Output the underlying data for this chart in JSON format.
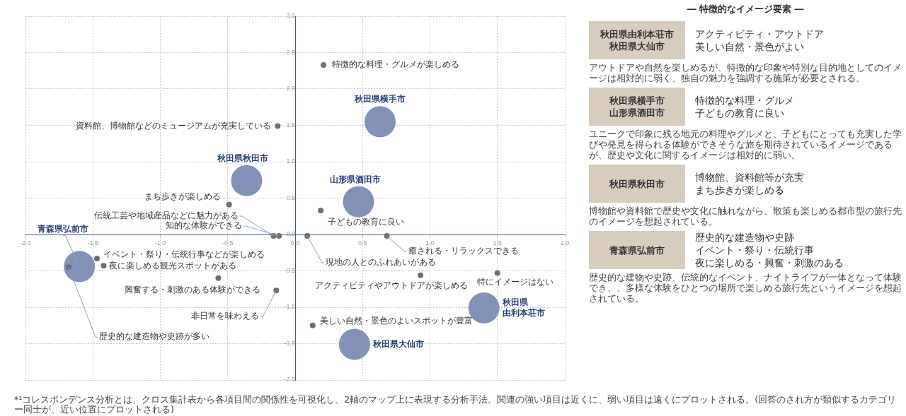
{
  "chart_data": [
    {
      "type": "scatter",
      "xlim": [
        -2,
        2
      ],
      "xticks": [
        {
          "value": -2,
          "label": "-2.0"
        },
        {
          "value": -1.5,
          "label": "-1.5"
        },
        {
          "value": -1,
          "label": "-1.0"
        },
        {
          "value": -0.5,
          "label": "-0.5"
        },
        {
          "value": 0,
          "label": "0.0"
        },
        {
          "value": 0.5,
          "label": "0.5"
        },
        {
          "value": 1,
          "label": "1.0"
        },
        {
          "value": 1.5,
          "label": "1.5"
        },
        {
          "value": 2,
          "label": "2.0"
        }
      ],
      "ylim": [
        -2,
        3
      ],
      "yticks": [
        {
          "value": -2,
          "label": "-2.0"
        },
        {
          "value": -1.5,
          "label": "-1.5"
        },
        {
          "value": -1,
          "label": "-1.0"
        },
        {
          "value": -0.5,
          "label": "-0.5"
        },
        {
          "value": 0,
          "label": "0.0"
        },
        {
          "value": 0.5,
          "label": "0.5"
        },
        {
          "value": 1,
          "label": "1.0"
        },
        {
          "value": 1.5,
          "label": "1.5"
        },
        {
          "value": 2,
          "label": "2.0"
        },
        {
          "value": 2.5,
          "label": "2.5"
        },
        {
          "value": 3,
          "label": "3.0"
        }
      ],
      "grid": true,
      "series": [
        {
          "type": "scatter",
          "color": "#6e6e6e",
          "x": [
            0.21,
            -0.13,
            -0.49,
            0.19,
            -0.16,
            -0.12,
            0.09,
            0.68,
            -1.68,
            -1.47,
            -1.42,
            -0.57,
            -0.14,
            0.93,
            1.5,
            0.13
          ],
          "values": [
            2.33,
            1.49,
            0.41,
            0.33,
            -0.02,
            -0.02,
            -0.02,
            -0.02,
            -0.45,
            -0.33,
            -0.43,
            -0.6,
            -0.77,
            -0.56,
            -0.53,
            -1.25
          ]
        },
        {
          "type": "bubble",
          "color": "#8391b8",
          "x": [
            0.63,
            -0.36,
            0.47,
            -1.6,
            1.4,
            0.44
          ],
          "values": [
            1.55,
            0.74,
            0.45,
            -0.44,
            -1.01,
            -1.51
          ],
          "sizes": [
            1,
            1,
            1,
            1,
            1,
            1
          ]
        }
      ],
      "annotations": [
        {
          "text": "特徴的な料理・グルメが楽しめる",
          "x": 0.21,
          "y": 2.33
        },
        {
          "text": "資料館、博物館などのミュージアムが充実している",
          "x": -0.13,
          "y": 1.49
        },
        {
          "text": "まち歩きが楽しめる",
          "x": -0.49,
          "y": 0.41
        },
        {
          "text": "子どもの教育に良い",
          "x": 0.19,
          "y": 0.33
        },
        {
          "text": "伝統工芸や地域産品などに魅力がある",
          "x": -0.16,
          "y": -0.02
        },
        {
          "text": "知的な体験ができる",
          "x": -0.12,
          "y": -0.02
        },
        {
          "text": "現地の人とのふれあいがある",
          "x": 0.09,
          "y": -0.02
        },
        {
          "text": "癒される・リラックスできる",
          "x": 0.68,
          "y": -0.02
        },
        {
          "text": "歴史的な建造物や史跡が多い",
          "x": -1.68,
          "y": -0.45
        },
        {
          "text": "イベント・祭り・伝統行事などが楽しめる",
          "x": -1.47,
          "y": -0.33
        },
        {
          "text": "夜に楽しめる観光スポットがある",
          "x": -1.42,
          "y": -0.43
        },
        {
          "text": "興奮する・刺激のある体験ができる",
          "x": -0.57,
          "y": -0.6
        },
        {
          "text": "非日常を味わえる",
          "x": -0.14,
          "y": -0.77
        },
        {
          "text": "アクティビティやアウトドアが楽しめる",
          "x": 0.93,
          "y": -0.56
        },
        {
          "text": "特にイメージはない",
          "x": 1.5,
          "y": -0.53
        },
        {
          "text": "美しい自然・景色のよいスポットが豊富",
          "x": 0.13,
          "y": -1.25
        },
        {
          "text": "秋田県横手市",
          "x": 0.63,
          "y": 1.55
        },
        {
          "text": "秋田県秋田市",
          "x": -0.36,
          "y": 0.74
        },
        {
          "text": "山形県酒田市",
          "x": 0.47,
          "y": 0.45
        },
        {
          "text": "青森県弘前市",
          "x": -1.6,
          "y": -0.44
        },
        {
          "text": "秋田県由利本荘市",
          "x": 1.4,
          "y": -1.01
        },
        {
          "text": "秋田県大仙市",
          "x": 0.44,
          "y": -1.51
        },
        "*¹コレスポンデンス分析とは、クロス集計表から各項目間の関係性を可視化し、2軸のマップ上に表現する分析手法。関連の強い項目は近くに、弱い項目は遠くにプロットされる。(回答のされ方が類似するカテゴリー同士が、近い位置にプロットされる)"
      ]
    },
    {
      "type": "other",
      "title": "― 特徴的なイメージ要素 ―",
      "annotations": [
        "秋田県由利本荘市",
        "秋田県大仙市",
        "アクティビティ・アウトドア",
        "美しい自然・景色がよい",
        "アウトドアや自然を楽しめるが、特徴的な印象や特別な目的地としてのイメージは相対的に弱く、独自の魅力を強調する施策が必要とされる。",
        "秋田県横手市",
        "山形県酒田市",
        "特徴的な料理・グルメ",
        "子どもの教育に良い",
        "ユニークで印象に残る地元の料理やグルメと、子どもにとっても充実した学びや発見を得られる体験ができそうな旅を期待されているイメージであるが、歴史や文化に関するイメージは相対的に弱い。",
        "秋田県秋田市",
        "博物館、資料館等が充実",
        "まち歩きが楽しめる",
        "博物館や資料館で歴史や文化に触れながら、散策も楽しめる都市型の旅行先のイメージを想起されている。",
        "青森県弘前市",
        "歴史的な建造物や史跡",
        "イベント・祭り・伝統行事",
        "夜に楽しめる・興奮・刺激のある",
        "歴史的な建物や史跡、伝統的なイベント、ナイトライフが一体となって体験でき、、多様な体験をひとつの場所で楽しめる旅行先というイメージを想起されている。"
      ]
    }
  ]
}
